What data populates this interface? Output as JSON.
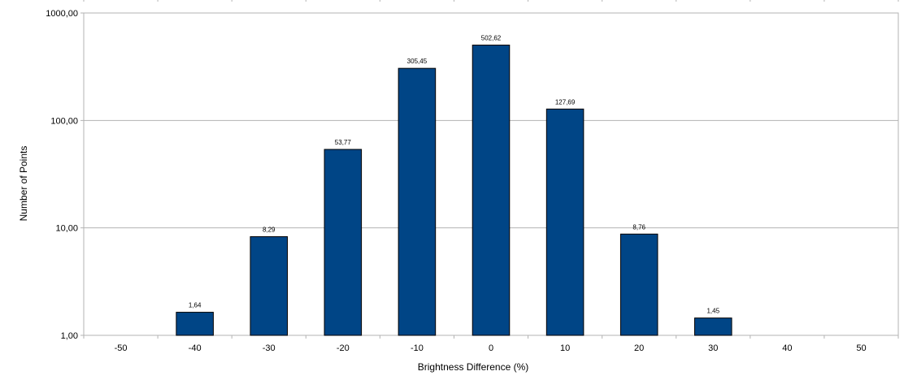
{
  "chart_data": {
    "type": "bar",
    "title": "",
    "xlabel": "Brightness Difference (%)",
    "ylabel": "Number of Points",
    "y_scale": "log",
    "ylim": [
      1,
      1000
    ],
    "grid": true,
    "colors": {
      "bar": "#004586",
      "grid": "#b3b3b3"
    },
    "y_ticks": [
      1,
      10,
      100,
      1000
    ],
    "y_tick_labels": [
      "1,00",
      "10,00",
      "100,00",
      "1000,00"
    ],
    "categories": [
      "-50",
      "-40",
      "-30",
      "-20",
      "-10",
      "0",
      "10",
      "20",
      "30",
      "40",
      "50"
    ],
    "values": [
      null,
      1.64,
      8.29,
      53.77,
      305.45,
      502.62,
      127.69,
      8.76,
      1.45,
      null,
      null
    ],
    "value_labels": [
      "",
      "1,64",
      "8,29",
      "53,77",
      "305,45",
      "502,62",
      "127,69",
      "8,76",
      "1,45",
      "",
      ""
    ]
  }
}
